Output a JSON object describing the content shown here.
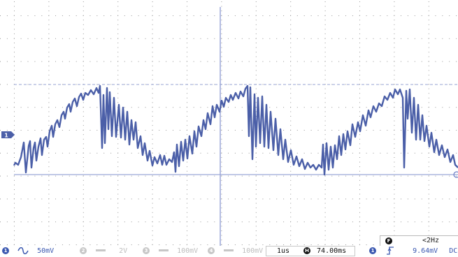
{
  "channel_marker": "1",
  "frequency_readout": {
    "badge": "F",
    "value": "<2Hz"
  },
  "status_bar": {
    "channels": [
      {
        "id": "1",
        "coupling_icon": "ac-wave-icon",
        "scale": "50mV",
        "active": true
      },
      {
        "id": "2",
        "coupling_icon": "dc-bar-icon",
        "scale": "2V",
        "active": false
      },
      {
        "id": "3",
        "coupling_icon": "dc-bar-icon",
        "scale": "100mV",
        "active": false
      },
      {
        "id": "4",
        "coupling_icon": "dc-bar-icon",
        "scale": "100mV",
        "active": false
      }
    ],
    "timebase": "1us",
    "horizontal": {
      "badge": "H",
      "value": "74.00ms"
    },
    "trigger": {
      "source": "1",
      "slope_icon": "rising-edge-icon",
      "level": "9.64mV",
      "coupling": "DC"
    }
  },
  "colors": {
    "trace": "#4b5fa8",
    "grid_dots": "#9a9a9a",
    "center_axis": "#6a7bc4",
    "ground_line": "#9aa6d6",
    "active_text": "#3a57b0",
    "inactive_text": "#bdbdbd"
  }
}
